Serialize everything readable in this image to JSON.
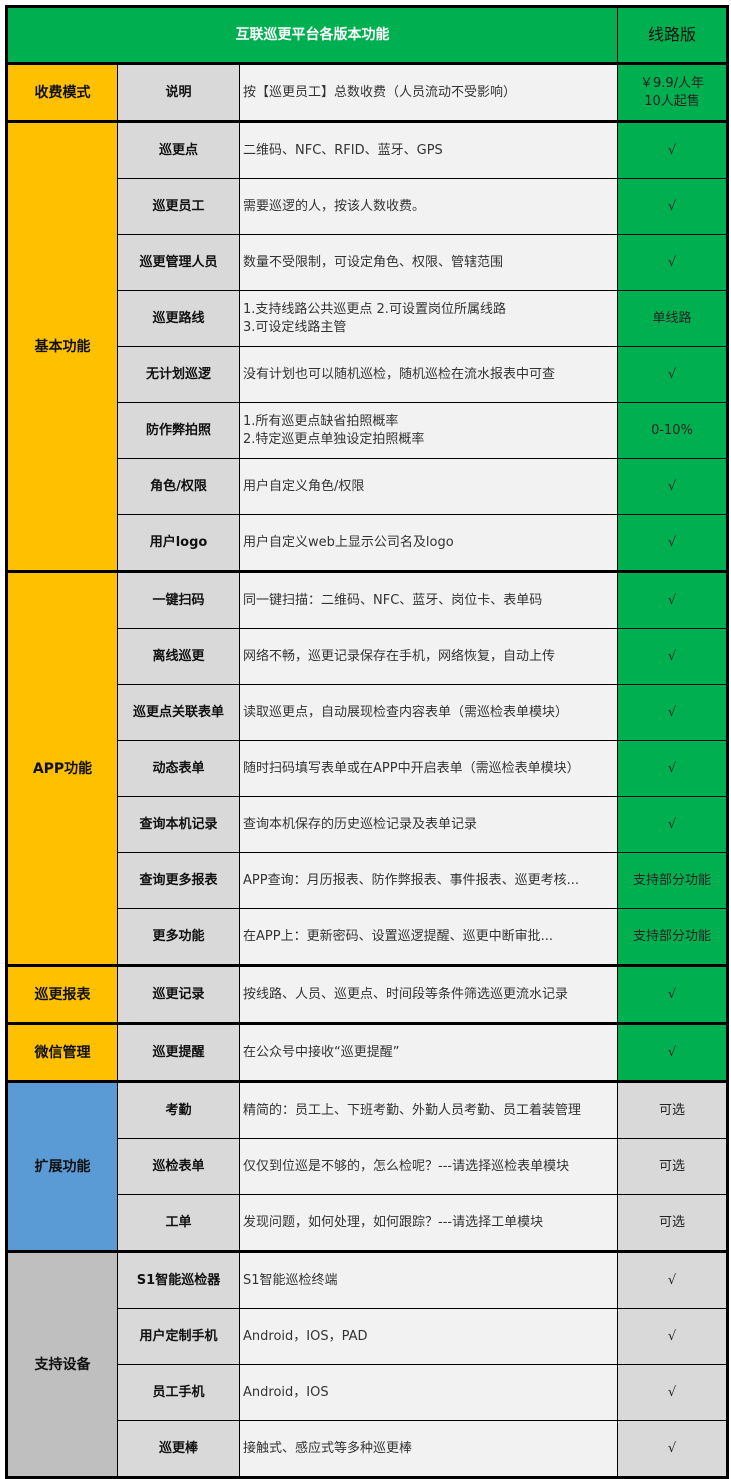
{
  "header": {
    "title": "互联巡更平台各版本功能",
    "version": "线路版"
  },
  "colors": {
    "green": "#00b050",
    "orange": "#ffc000",
    "blue": "#5b9bd5",
    "gray": "#bfbfbf",
    "light_gray": "#d9d9d9"
  },
  "groups": [
    {
      "label": "收费模式",
      "color": "#ffc000",
      "value_color": "#00b050",
      "rows": [
        {
          "name": "说明",
          "desc": "按【巡更员工】总数收费（人员流动不受影响）",
          "value": "￥9.9/人年\n10人起售"
        }
      ]
    },
    {
      "label": "基本功能",
      "color": "#ffc000",
      "value_color": "#00b050",
      "rows": [
        {
          "name": "巡更点",
          "desc": "二维码、NFC、RFID、蓝牙、GPS",
          "value": "√"
        },
        {
          "name": "巡更员工",
          "desc": "需要巡逻的人，按该人数收费。",
          "value": "√"
        },
        {
          "name": "巡更管理人员",
          "desc": "数量不受限制，可设定角色、权限、管辖范围",
          "value": "√"
        },
        {
          "name": "巡更路线",
          "desc": "1.支持线路公共巡更点  2.可设置岗位所属线路\n3.可设定线路主管",
          "value": "单线路"
        },
        {
          "name": "无计划巡逻",
          "desc": "没有计划也可以随机巡检，随机巡检在流水报表中可查",
          "value": "√"
        },
        {
          "name": "防作弊拍照",
          "desc": "1.所有巡更点缺省拍照概率\n2.特定巡更点单独设定拍照概率",
          "value": "0-10%"
        },
        {
          "name": "角色/权限",
          "desc": "用户自定义角色/权限",
          "value": "√"
        },
        {
          "name": "用户logo",
          "desc": "用户自定义web上显示公司名及logo",
          "value": "√"
        }
      ]
    },
    {
      "label": "APP功能",
      "color": "#ffc000",
      "value_color": "#00b050",
      "rows": [
        {
          "name": "一键扫码",
          "desc": "同一键扫描：二维码、NFC、蓝牙、岗位卡、表单码",
          "value": "√"
        },
        {
          "name": "离线巡更",
          "desc": "网络不畅，巡更记录保存在手机，网络恢复，自动上传",
          "value": "√"
        },
        {
          "name": "巡更点关联表单",
          "desc": "读取巡更点，自动展现检查内容表单（需巡检表单模块）",
          "value": "√"
        },
        {
          "name": "动态表单",
          "desc": "随时扫码填写表单或在APP中开启表单（需巡检表单模块）",
          "value": "√"
        },
        {
          "name": "查询本机记录",
          "desc": "查询本机保存的历史巡检记录及表单记录",
          "value": "√"
        },
        {
          "name": "查询更多报表",
          "desc": "APP查询：月历报表、防作弊报表、事件报表、巡更考核...",
          "value": "支持部分功能"
        },
        {
          "name": "更多功能",
          "desc": "在APP上：更新密码、设置巡逻提醒、巡更中断审批...",
          "value": "支持部分功能"
        }
      ]
    },
    {
      "label": "巡更报表",
      "color": "#ffc000",
      "value_color": "#00b050",
      "rows": [
        {
          "name": "巡更记录",
          "desc": "按线路、人员、巡更点、时间段等条件筛选巡更流水记录",
          "value": "√"
        }
      ]
    },
    {
      "label": "微信管理",
      "color": "#ffc000",
      "value_color": "#00b050",
      "rows": [
        {
          "name": "巡更提醒",
          "desc": "在公众号中接收“巡更提醒”",
          "value": "√"
        }
      ]
    },
    {
      "label": "扩展功能",
      "color": "#5b9bd5",
      "value_color": "#d9d9d9",
      "rows": [
        {
          "name": "考勤",
          "desc": "精简的：员工上、下班考勤、外勤人员考勤、员工着装管理",
          "value": "可选"
        },
        {
          "name": "巡检表单",
          "desc": "仅仅到位巡是不够的，怎么检呢？---请选择巡检表单模块",
          "value": "可选"
        },
        {
          "name": "工单",
          "desc": "发现问题，如何处理，如何跟踪？---请选择工单模块",
          "value": "可选"
        }
      ]
    },
    {
      "label": "支持设备",
      "color": "#bfbfbf",
      "value_color": "#d9d9d9",
      "rows": [
        {
          "name": "S1智能巡检器",
          "desc": "S1智能巡检终端",
          "value": "√"
        },
        {
          "name": "用户定制手机",
          "desc": "Android，IOS，PAD",
          "value": "√"
        },
        {
          "name": "员工手机",
          "desc": "Android，IOS",
          "value": "√"
        },
        {
          "name": "巡更棒",
          "desc": "接触式、感应式等多种巡更棒",
          "value": "√"
        }
      ]
    }
  ]
}
